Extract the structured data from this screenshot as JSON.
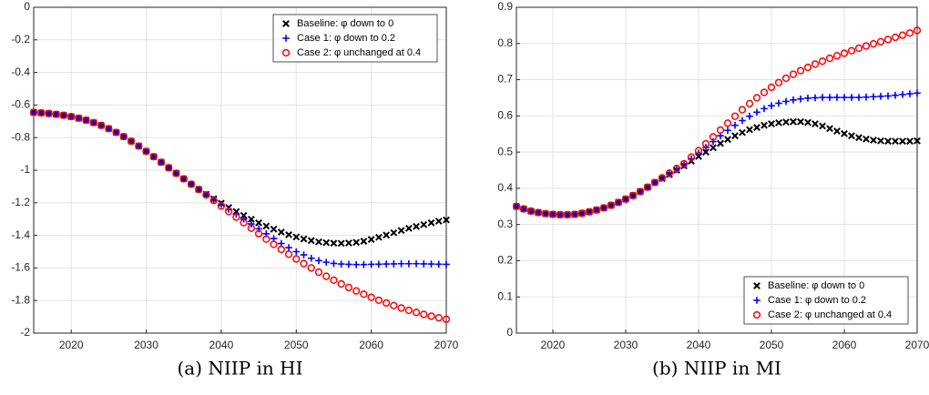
{
  "chart_data": [
    {
      "type": "scatter",
      "caption": "(a) NIIP in HI",
      "x": [
        2015,
        2016,
        2017,
        2018,
        2019,
        2020,
        2021,
        2022,
        2023,
        2024,
        2025,
        2026,
        2027,
        2028,
        2029,
        2030,
        2031,
        2032,
        2033,
        2034,
        2035,
        2036,
        2037,
        2038,
        2039,
        2040,
        2041,
        2042,
        2043,
        2044,
        2045,
        2046,
        2047,
        2048,
        2049,
        2050,
        2051,
        2052,
        2053,
        2054,
        2055,
        2056,
        2057,
        2058,
        2059,
        2060,
        2061,
        2062,
        2063,
        2064,
        2065,
        2066,
        2067,
        2068,
        2069,
        2070
      ],
      "xlim": [
        2015,
        2070
      ],
      "xticks": [
        2020,
        2030,
        2040,
        2050,
        2060,
        2070
      ],
      "ylim": [
        -2,
        0
      ],
      "yticks": [
        0,
        -0.2,
        -0.4,
        -0.6,
        -0.8,
        -1,
        -1.2,
        -1.4,
        -1.6,
        -1.8,
        -2
      ],
      "grid": true,
      "legend": "upper right",
      "series": [
        {
          "name": "Baseline: φ down to 0",
          "color": "#000000",
          "marker": "x",
          "values": [
            -0.645,
            -0.648,
            -0.652,
            -0.657,
            -0.663,
            -0.671,
            -0.681,
            -0.693,
            -0.708,
            -0.725,
            -0.745,
            -0.768,
            -0.794,
            -0.822,
            -0.852,
            -0.884,
            -0.917,
            -0.951,
            -0.985,
            -1.019,
            -1.053,
            -1.086,
            -1.118,
            -1.148,
            -1.176,
            -1.203,
            -1.229,
            -1.254,
            -1.278,
            -1.301,
            -1.323,
            -1.343,
            -1.362,
            -1.38,
            -1.396,
            -1.41,
            -1.422,
            -1.432,
            -1.44,
            -1.445,
            -1.448,
            -1.449,
            -1.447,
            -1.443,
            -1.436,
            -1.425,
            -1.412,
            -1.398,
            -1.384,
            -1.37,
            -1.357,
            -1.345,
            -1.334,
            -1.323,
            -1.313,
            -1.305
          ]
        },
        {
          "name": "Case 1: φ down to 0.2",
          "color": "#0000ff",
          "marker": "+",
          "values": [
            -0.645,
            -0.648,
            -0.652,
            -0.657,
            -0.663,
            -0.671,
            -0.681,
            -0.693,
            -0.708,
            -0.725,
            -0.745,
            -0.768,
            -0.794,
            -0.822,
            -0.852,
            -0.884,
            -0.917,
            -0.951,
            -0.985,
            -1.019,
            -1.053,
            -1.086,
            -1.118,
            -1.15,
            -1.18,
            -1.21,
            -1.24,
            -1.27,
            -1.3,
            -1.33,
            -1.36,
            -1.39,
            -1.42,
            -1.45,
            -1.475,
            -1.5,
            -1.52,
            -1.54,
            -1.555,
            -1.565,
            -1.572,
            -1.576,
            -1.578,
            -1.579,
            -1.579,
            -1.578,
            -1.577,
            -1.576,
            -1.575,
            -1.574,
            -1.574,
            -1.574,
            -1.575,
            -1.576,
            -1.577,
            -1.578
          ]
        },
        {
          "name": "Case 2: φ unchanged at 0.4",
          "color": "#ff0000",
          "marker": "o",
          "values": [
            -0.645,
            -0.648,
            -0.652,
            -0.657,
            -0.663,
            -0.671,
            -0.681,
            -0.693,
            -0.708,
            -0.725,
            -0.745,
            -0.768,
            -0.794,
            -0.822,
            -0.852,
            -0.884,
            -0.917,
            -0.951,
            -0.985,
            -1.019,
            -1.053,
            -1.086,
            -1.118,
            -1.152,
            -1.186,
            -1.22,
            -1.254,
            -1.288,
            -1.322,
            -1.356,
            -1.39,
            -1.423,
            -1.455,
            -1.486,
            -1.516,
            -1.545,
            -1.573,
            -1.6,
            -1.626,
            -1.651,
            -1.675,
            -1.698,
            -1.72,
            -1.741,
            -1.761,
            -1.78,
            -1.798,
            -1.815,
            -1.831,
            -1.846,
            -1.86,
            -1.873,
            -1.885,
            -1.896,
            -1.906,
            -1.915
          ]
        }
      ]
    },
    {
      "type": "scatter",
      "caption": "(b) NIIP in MI",
      "x": [
        2015,
        2016,
        2017,
        2018,
        2019,
        2020,
        2021,
        2022,
        2023,
        2024,
        2025,
        2026,
        2027,
        2028,
        2029,
        2030,
        2031,
        2032,
        2033,
        2034,
        2035,
        2036,
        2037,
        2038,
        2039,
        2040,
        2041,
        2042,
        2043,
        2044,
        2045,
        2046,
        2047,
        2048,
        2049,
        2050,
        2051,
        2052,
        2053,
        2054,
        2055,
        2056,
        2057,
        2058,
        2059,
        2060,
        2061,
        2062,
        2063,
        2064,
        2065,
        2066,
        2067,
        2068,
        2069,
        2070
      ],
      "xlim": [
        2015,
        2070
      ],
      "xticks": [
        2020,
        2030,
        2040,
        2050,
        2060,
        2070
      ],
      "ylim": [
        0,
        0.9
      ],
      "yticks": [
        0,
        0.1,
        0.2,
        0.3,
        0.4,
        0.5,
        0.6,
        0.7,
        0.8,
        0.9
      ],
      "grid": true,
      "legend": "lower right",
      "series": [
        {
          "name": "Baseline: φ down to 0",
          "color": "#000000",
          "marker": "x",
          "values": [
            0.35,
            0.343,
            0.337,
            0.333,
            0.33,
            0.328,
            0.327,
            0.327,
            0.328,
            0.331,
            0.335,
            0.34,
            0.346,
            0.353,
            0.361,
            0.37,
            0.38,
            0.391,
            0.403,
            0.416,
            0.427,
            0.438,
            0.45,
            0.462,
            0.475,
            0.488,
            0.5,
            0.512,
            0.524,
            0.535,
            0.545,
            0.554,
            0.562,
            0.568,
            0.574,
            0.578,
            0.581,
            0.583,
            0.584,
            0.584,
            0.582,
            0.578,
            0.572,
            0.565,
            0.558,
            0.551,
            0.545,
            0.54,
            0.536,
            0.533,
            0.531,
            0.53,
            0.53,
            0.53,
            0.53,
            0.531
          ]
        },
        {
          "name": "Case 1: φ down to 0.2",
          "color": "#0000ff",
          "marker": "+",
          "values": [
            0.35,
            0.343,
            0.337,
            0.333,
            0.33,
            0.328,
            0.327,
            0.327,
            0.328,
            0.331,
            0.335,
            0.34,
            0.346,
            0.353,
            0.361,
            0.37,
            0.38,
            0.391,
            0.403,
            0.416,
            0.428,
            0.44,
            0.452,
            0.465,
            0.481,
            0.497,
            0.513,
            0.529,
            0.545,
            0.56,
            0.574,
            0.587,
            0.599,
            0.61,
            0.62,
            0.628,
            0.635,
            0.64,
            0.644,
            0.647,
            0.649,
            0.65,
            0.651,
            0.651,
            0.651,
            0.651,
            0.651,
            0.651,
            0.652,
            0.653,
            0.654,
            0.655,
            0.657,
            0.659,
            0.661,
            0.663
          ]
        },
        {
          "name": "Case 2: φ unchanged at 0.4",
          "color": "#ff0000",
          "marker": "o",
          "values": [
            0.35,
            0.343,
            0.337,
            0.333,
            0.33,
            0.328,
            0.327,
            0.327,
            0.328,
            0.331,
            0.335,
            0.34,
            0.346,
            0.353,
            0.361,
            0.37,
            0.38,
            0.391,
            0.403,
            0.416,
            0.429,
            0.442,
            0.455,
            0.468,
            0.486,
            0.504,
            0.523,
            0.542,
            0.561,
            0.58,
            0.599,
            0.617,
            0.634,
            0.65,
            0.665,
            0.679,
            0.692,
            0.704,
            0.715,
            0.725,
            0.734,
            0.743,
            0.751,
            0.759,
            0.766,
            0.773,
            0.78,
            0.787,
            0.793,
            0.799,
            0.805,
            0.811,
            0.817,
            0.823,
            0.829,
            0.836
          ]
        }
      ]
    }
  ]
}
